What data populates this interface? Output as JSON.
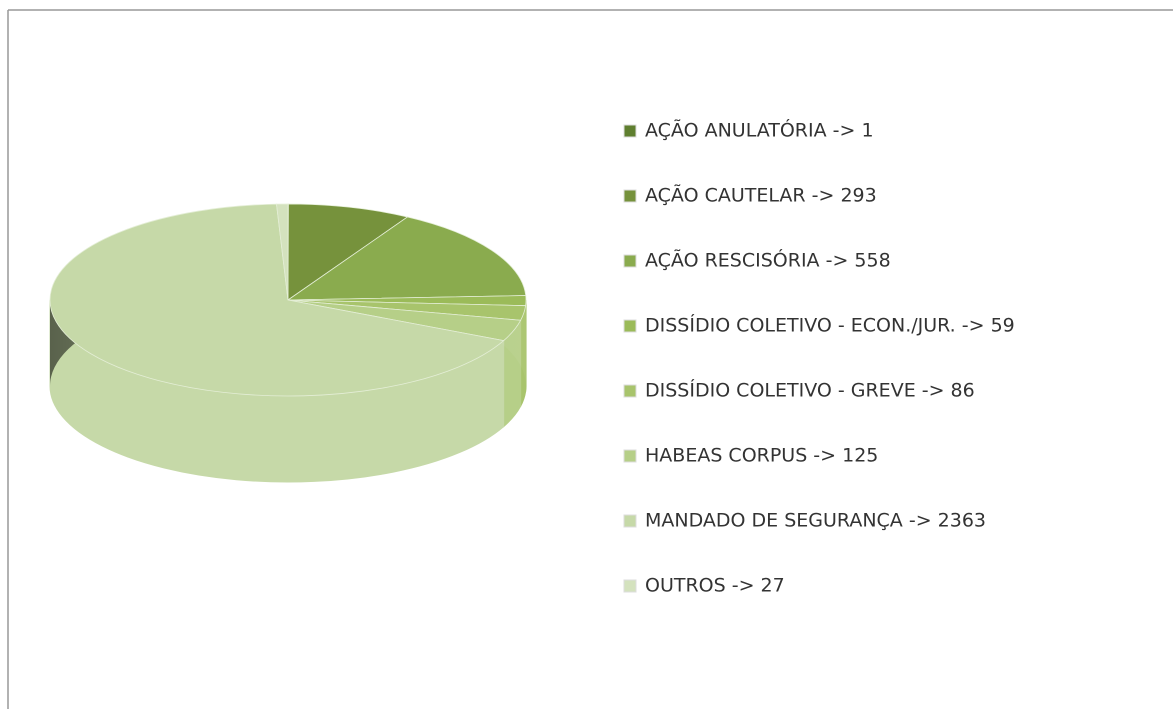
{
  "chart_data": {
    "type": "pie3d",
    "categories": [
      "AÇÃO ANULATÓRIA -> 1",
      "AÇÃO CAUTELAR -> 293",
      "AÇÃO RESCISÓRIA -> 558",
      "DISSÍDIO COLETIVO - ECON./JUR. -> 59",
      "DISSÍDIO COLETIVO - GREVE -> 86",
      "HABEAS CORPUS -> 125",
      "MANDADO DE SEGURANÇA -> 2363",
      "OUTROS -> 27"
    ],
    "values": [
      1,
      293,
      558,
      59,
      86,
      125,
      2363,
      27
    ],
    "colors": [
      "#5f7f2f",
      "#76923c",
      "#8aab4e",
      "#9bbb59",
      "#a8c46c",
      "#b6cf88",
      "#c6d9a8",
      "#d4e2be"
    ],
    "legend": "right"
  }
}
